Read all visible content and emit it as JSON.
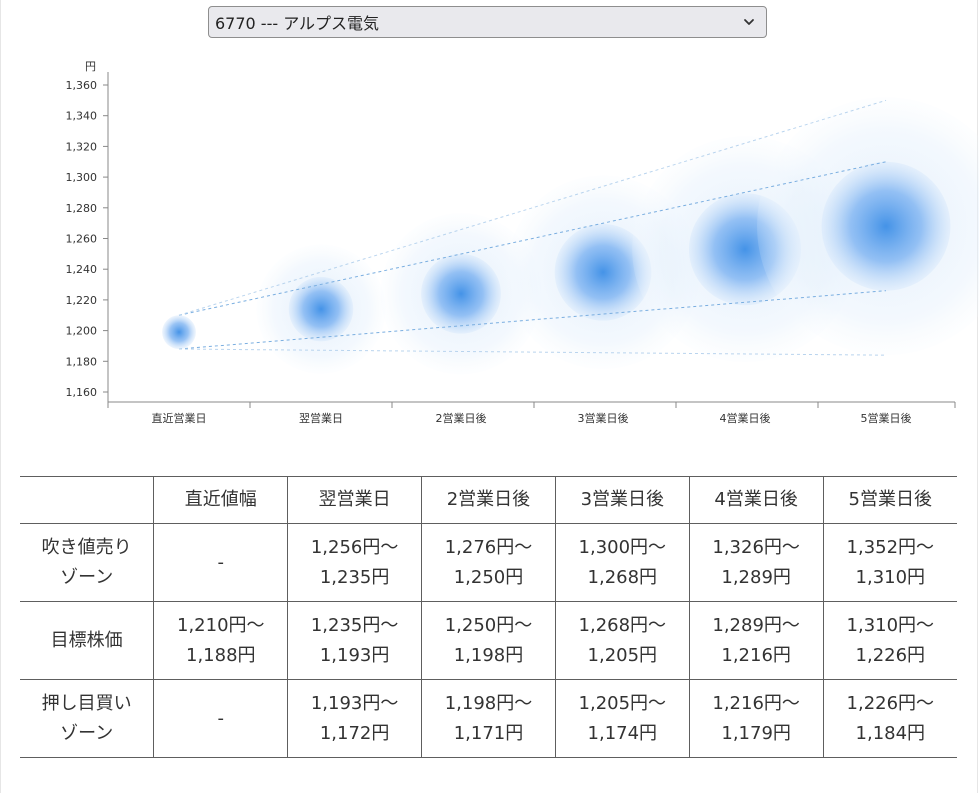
{
  "stock_select": {
    "selected_label": "6770 --- アルプス電気",
    "chevron_icon": "chevron-down-icon"
  },
  "chart_data": {
    "type": "bubble-forecast",
    "y_unit": "円",
    "categories": [
      "直近営業日",
      "翌営業日",
      "2営業日後",
      "3営業日後",
      "4営業日後",
      "5営業日後"
    ],
    "yticks": [
      "1,160",
      "1,180",
      "1,200",
      "1,220",
      "1,240",
      "1,260",
      "1,280",
      "1,300",
      "1,320",
      "1,340",
      "1,360"
    ],
    "ylim": [
      1160,
      1360
    ],
    "center": [
      1199,
      1214,
      1224,
      1238,
      1253,
      1268
    ],
    "target_high": [
      1210,
      1235,
      1250,
      1268,
      1289,
      1310
    ],
    "target_low": [
      1188,
      1193,
      1198,
      1205,
      1216,
      1226
    ],
    "outer_high": [
      1210,
      1256,
      1276,
      1300,
      1326,
      1352
    ],
    "outer_low": [
      1188,
      1172,
      1171,
      1174,
      1179,
      1184
    ],
    "colors": {
      "bubble": "#3c8ee6",
      "band_line": "#7aaee0",
      "outer_line": "#b9d4ee",
      "axis": "#888888"
    }
  },
  "table": {
    "headers": [
      "",
      "直近値幅",
      "翌営業日",
      "2営業日後",
      "3営業日後",
      "4営業日後",
      "5営業日後"
    ],
    "rows": [
      {
        "label": [
          "吹き値売り",
          "ゾーン"
        ],
        "cells": [
          [
            "-"
          ],
          [
            "1,256円～",
            "1,235円"
          ],
          [
            "1,276円～",
            "1,250円"
          ],
          [
            "1,300円～",
            "1,268円"
          ],
          [
            "1,326円～",
            "1,289円"
          ],
          [
            "1,352円～",
            "1,310円"
          ]
        ]
      },
      {
        "label": [
          "目標株価"
        ],
        "cells": [
          [
            "1,210円～",
            "1,188円"
          ],
          [
            "1,235円～",
            "1,193円"
          ],
          [
            "1,250円～",
            "1,198円"
          ],
          [
            "1,268円～",
            "1,205円"
          ],
          [
            "1,289円～",
            "1,216円"
          ],
          [
            "1,310円～",
            "1,226円"
          ]
        ]
      },
      {
        "label": [
          "押し目買い",
          "ゾーン"
        ],
        "cells": [
          [
            "-"
          ],
          [
            "1,193円～",
            "1,172円"
          ],
          [
            "1,198円～",
            "1,171円"
          ],
          [
            "1,205円～",
            "1,174円"
          ],
          [
            "1,216円～",
            "1,179円"
          ],
          [
            "1,226円～",
            "1,184円"
          ]
        ]
      }
    ]
  }
}
